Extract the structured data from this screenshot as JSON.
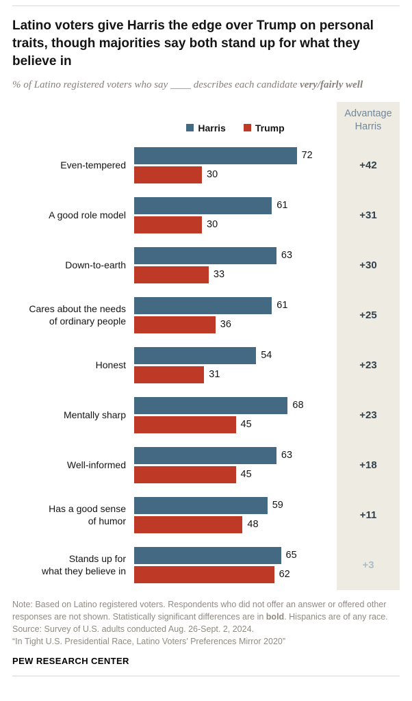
{
  "header": {
    "title": "Latino voters give Harris the edge over Trump on personal traits, though majorities say both stand up for what they believe in",
    "subtitle_pre": "% of Latino registered voters who say ____ describes each candidate ",
    "subtitle_bold": "very/fairly well"
  },
  "chart_data": {
    "type": "bar",
    "orientation": "horizontal",
    "xlim": [
      0,
      100
    ],
    "legend_position": "top",
    "advantage_header": "Advantage Harris",
    "colors": {
      "harris": "#436983",
      "trump": "#bf3927",
      "advantage_bg": "#eeebe2",
      "advantage_text": "#31404b",
      "advantage_text_not_significant": "#abbec9"
    },
    "categories": [
      "Even-tempered",
      "A good role model",
      "Down-to-earth",
      "Cares about the needs\nof ordinary people",
      "Honest",
      "Mentally sharp",
      "Well-informed",
      "Has a good sense\nof humor",
      "Stands up for\nwhat they believe in"
    ],
    "series": [
      {
        "name": "Harris",
        "color": "#436983",
        "values": [
          72,
          61,
          63,
          61,
          54,
          68,
          63,
          59,
          65
        ]
      },
      {
        "name": "Trump",
        "color": "#bf3927",
        "values": [
          30,
          30,
          33,
          36,
          31,
          45,
          45,
          48,
          62
        ]
      }
    ],
    "advantage": [
      {
        "label": "+42",
        "significant": true
      },
      {
        "label": "+31",
        "significant": true
      },
      {
        "label": "+30",
        "significant": true
      },
      {
        "label": "+25",
        "significant": true
      },
      {
        "label": "+23",
        "significant": true
      },
      {
        "label": "+23",
        "significant": true
      },
      {
        "label": "+18",
        "significant": true
      },
      {
        "label": "+11",
        "significant": true
      },
      {
        "label": "+3",
        "significant": false
      }
    ]
  },
  "footer": {
    "note_pre": "Note: Based on Latino registered voters. Respondents who did not offer an answer or offered other responses are not shown. Statistically significant differences are in ",
    "note_bold": "bold",
    "note_post": ". Hispanics are of any race.",
    "source": "Source: Survey of U.S. adults conducted Aug. 26-Sept. 2, 2024.",
    "report": "“In Tight U.S. Presidential Race, Latino Voters’ Preferences Mirror 2020”",
    "brand": "PEW RESEARCH CENTER"
  }
}
